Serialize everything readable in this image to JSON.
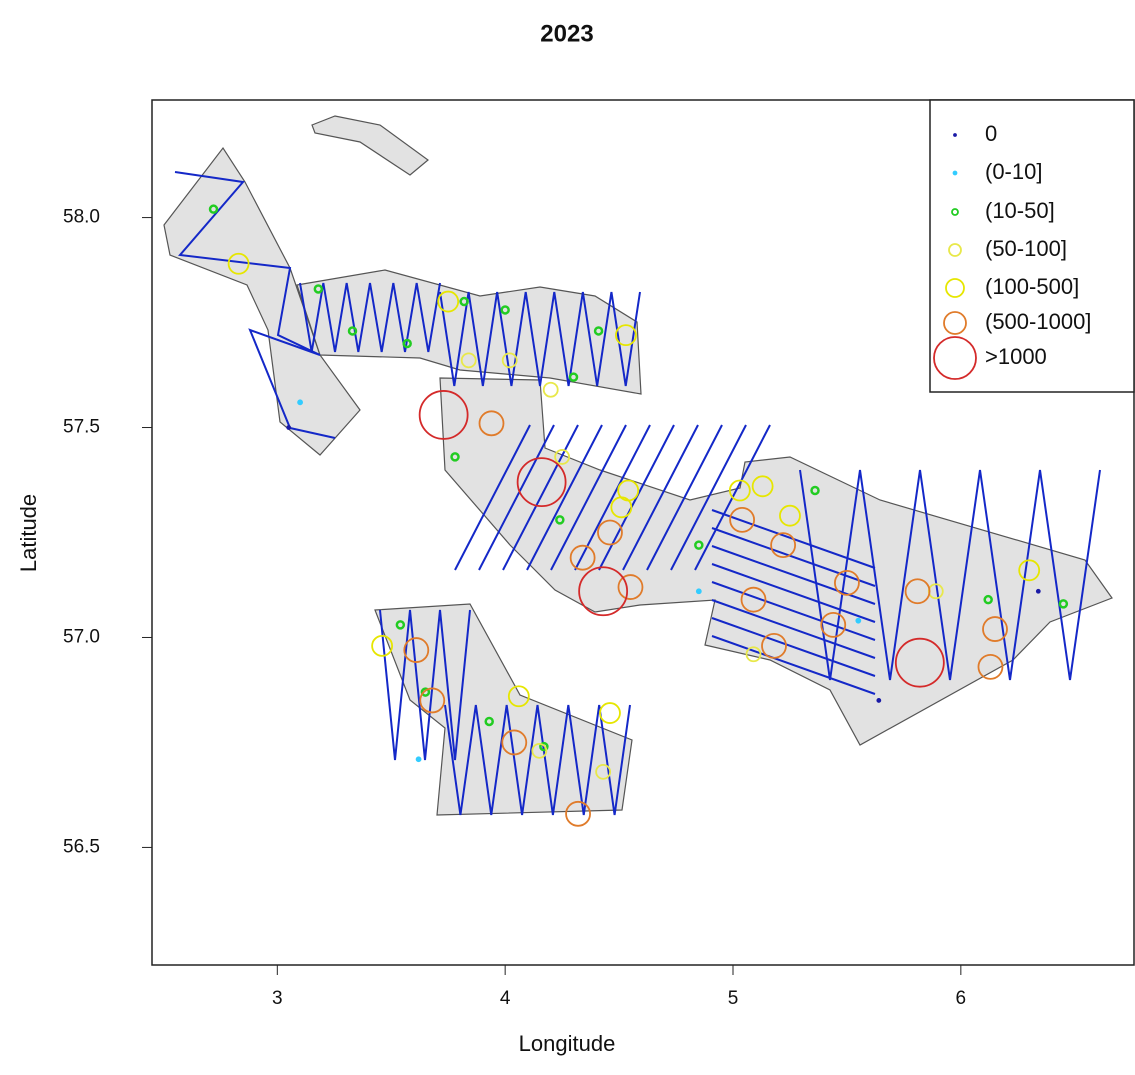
{
  "chart_data": {
    "type": "scatter",
    "title": "2023",
    "x_label": "Longitude",
    "y_label": "Latitude",
    "xlim": [
      2.45,
      6.76
    ],
    "ylim": [
      56.22,
      58.28
    ],
    "xticks": [
      3,
      4,
      5,
      6
    ],
    "yticks": [
      56.5,
      {
        "value": 57.0,
        "label": "57.0"
      },
      57.5,
      {
        "value": 58.0,
        "label": "58.0"
      }
    ],
    "legend": "top-right",
    "series": [
      {
        "name": "0",
        "color": "#1a1aa6",
        "x": [
          3.05,
          6.34,
          5.64
        ],
        "y": [
          57.5,
          57.11,
          56.85
        ]
      },
      {
        "name": "(0-10]",
        "color": "#33ccff",
        "x": [
          3.1,
          5.55,
          4.85,
          3.62
        ],
        "y": [
          57.56,
          57.04,
          57.11,
          56.71
        ]
      },
      {
        "name": "(10-50]",
        "color": "#22cc22",
        "x": [
          2.72,
          3.18,
          3.33,
          3.57,
          3.82,
          4.0,
          4.3,
          4.41,
          3.78,
          4.24,
          4.85,
          5.36,
          6.12,
          6.45,
          3.65,
          3.93,
          4.17,
          3.54
        ],
        "y": [
          58.02,
          57.83,
          57.73,
          57.7,
          57.8,
          57.78,
          57.62,
          57.73,
          57.43,
          57.28,
          57.22,
          57.35,
          57.09,
          57.08,
          56.87,
          56.8,
          56.74,
          57.03
        ]
      },
      {
        "name": "(50-100]",
        "color": "#e8e84a",
        "x": [
          3.84,
          4.02,
          4.2,
          4.25,
          5.09,
          4.15,
          4.43,
          5.89
        ],
        "y": [
          57.66,
          57.66,
          57.59,
          57.43,
          56.96,
          56.73,
          56.68,
          57.11
        ]
      },
      {
        "name": "(100-500]",
        "color": "#e6e600",
        "x": [
          3.75,
          5.03,
          5.13,
          5.25,
          4.53,
          6.3,
          3.46,
          4.06,
          4.46,
          2.83,
          4.54,
          4.51
        ],
        "y": [
          57.8,
          57.35,
          57.36,
          57.29,
          57.72,
          57.16,
          56.98,
          56.86,
          56.82,
          57.89,
          57.35,
          57.31
        ]
      },
      {
        "name": "(500-1000]",
        "color": "#e07b2a",
        "x": [
          3.94,
          4.34,
          4.46,
          4.55,
          5.04,
          5.09,
          5.22,
          5.5,
          3.61,
          3.68,
          4.04,
          4.32,
          5.18,
          5.44,
          5.81,
          6.15,
          6.13
        ],
        "y": [
          57.51,
          57.19,
          57.25,
          57.12,
          57.28,
          57.09,
          57.22,
          57.13,
          56.97,
          56.85,
          56.75,
          56.58,
          56.98,
          57.03,
          57.11,
          57.02,
          56.93
        ]
      },
      {
        "name": ">1000",
        "color": "#d42a2a",
        "x": [
          3.73,
          4.16,
          4.43,
          5.82
        ],
        "y": [
          57.53,
          57.37,
          57.11,
          56.94
        ]
      }
    ]
  }
}
